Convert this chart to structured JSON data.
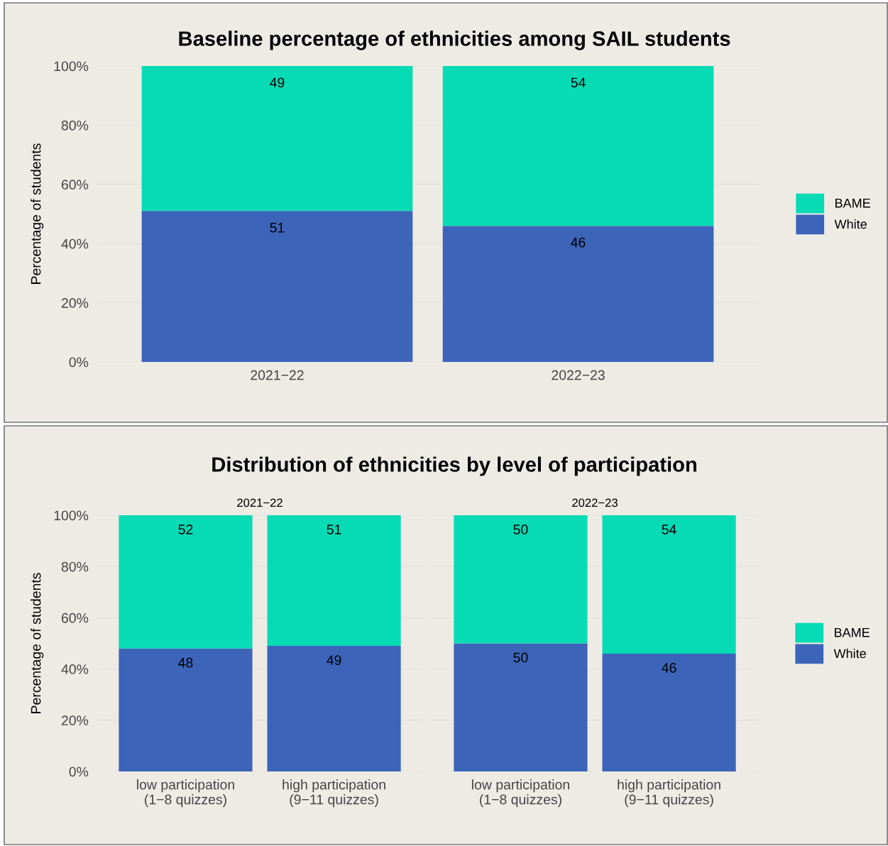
{
  "chart_data": [
    {
      "type": "bar",
      "stacked": true,
      "title": "Baseline percentage of ethnicities among SAIL students",
      "ylabel": "Percentage of students",
      "categories": [
        "2021−22",
        "2022−23"
      ],
      "series": [
        {
          "name": "White",
          "color": "#3c64b9",
          "values": [
            51,
            46
          ]
        },
        {
          "name": "BAME",
          "color": "#06dbb5",
          "values": [
            49,
            54
          ]
        }
      ],
      "ylim": [
        0,
        100
      ],
      "yticks": [
        {
          "value": 0,
          "label": "0%"
        },
        {
          "value": 20,
          "label": "20%"
        },
        {
          "value": 40,
          "label": "40%"
        },
        {
          "value": 60,
          "label": "60%"
        },
        {
          "value": 80,
          "label": "80%"
        },
        {
          "value": 100,
          "label": "100%"
        }
      ],
      "data_labels": true,
      "grid": true,
      "legend": "right"
    },
    {
      "type": "bar",
      "stacked": true,
      "title": "Distribution of ethnicities by level of participation",
      "subtitle": "2021−22",
      "ylabel": "Percentage of students",
      "categories": [
        "low participation\n(1−8 quizzes)",
        "high participation\n(9−11 quizzes)"
      ],
      "series": [
        {
          "color": "#3c64b9",
          "values": [
            48,
            49
          ]
        },
        {
          "color": "#06dbb5",
          "values": [
            52,
            51
          ]
        }
      ],
      "ylim": [
        0,
        100
      ],
      "yticks": [
        {
          "value": 0,
          "label": "0%"
        },
        {
          "value": 20,
          "label": "20%"
        },
        {
          "value": 40,
          "label": "40%"
        },
        {
          "value": 60,
          "label": "60%"
        },
        {
          "value": 80,
          "label": "80%"
        },
        {
          "value": 100,
          "label": "100%"
        }
      ],
      "data_labels": true,
      "grid": true
    },
    {
      "type": "bar",
      "stacked": true,
      "subtitle": "2022−23",
      "categories": [
        "low participation\n(1−8 quizzes)",
        "high participation\n(9−11 quizzes)"
      ],
      "series": [
        {
          "name": "White",
          "color": "#3c64b9",
          "values": [
            50,
            46
          ]
        },
        {
          "name": "BAME",
          "color": "#06dbb5",
          "values": [
            50,
            54
          ]
        }
      ],
      "ylim": [
        0,
        100
      ],
      "yticks": [
        {
          "value": 0,
          "label": null
        },
        {
          "value": 20,
          "label": null
        },
        {
          "value": 40,
          "label": null
        },
        {
          "value": 60,
          "label": null
        },
        {
          "value": 80,
          "label": null
        },
        {
          "value": 100,
          "label": null
        }
      ],
      "data_labels": true,
      "grid": true,
      "legend": "right",
      "tick_labels": "x"
    }
  ]
}
